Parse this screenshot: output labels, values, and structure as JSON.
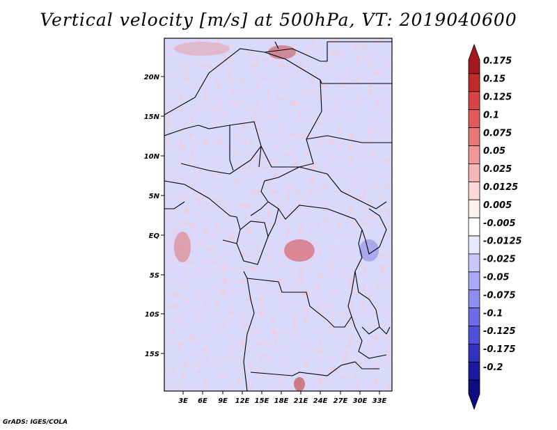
{
  "title": "Vertical velocity [m/s] at 500hPa, VT: 2019040600",
  "credit": "GrADS: IGES/COLA",
  "map": {
    "lat_labels": [
      "20N",
      "15N",
      "10N",
      "5N",
      "EQ",
      "5S",
      "10S",
      "15S"
    ],
    "lon_labels": [
      "3E",
      "6E",
      "9E",
      "12E",
      "15E",
      "18E",
      "21E",
      "24E",
      "27E",
      "30E",
      "33E"
    ]
  },
  "colorbar": {
    "labels": [
      "0.175",
      "0.15",
      "0.125",
      "0.1",
      "0.075",
      "0.05",
      "0.025",
      "0.0125",
      "0.005",
      "-0.005",
      "-0.0125",
      "-0.025",
      "-0.05",
      "-0.075",
      "-0.1",
      "-0.125",
      "-0.175",
      "-0.2"
    ],
    "colors": [
      "#a4181b",
      "#c22a2a",
      "#d84343",
      "#e35a5a",
      "#ea7575",
      "#f19595",
      "#f7b7b7",
      "#fbd8d8",
      "#fff0f0",
      "#ffffff",
      "#e8e8ff",
      "#c8c8ff",
      "#a8a8fb",
      "#8c8cf3",
      "#6c6ce8",
      "#5050d8",
      "#3232c0",
      "#1a1aa0",
      "#0c0c80"
    ]
  }
}
